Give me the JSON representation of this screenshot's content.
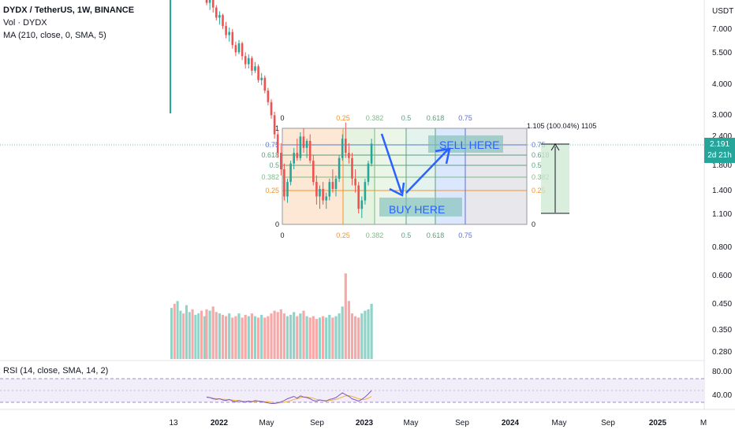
{
  "header": {
    "symbol": "DYDX / TetherUS, 1W, BINANCE",
    "volume_label": "Vol · DYDX",
    "ma_label": "MA (210, close, 0, SMA, 5)",
    "rsi_label": "RSI (14, close, SMA, 14, 2)"
  },
  "price_axis": {
    "currency": "USDT",
    "ticks": [
      "7.000",
      "5.500",
      "4.000",
      "3.000",
      "2.400",
      "1.800",
      "1.400",
      "1.100",
      "0.800",
      "0.600",
      "0.450",
      "0.350",
      "0.280"
    ]
  },
  "current_price": {
    "value": "2.191",
    "countdown": "2d 21h",
    "color": "#26a69a"
  },
  "rsi_axis": {
    "ticks": [
      "80.00",
      "40.00"
    ]
  },
  "time_axis": {
    "ticks": [
      "13",
      "2022",
      "May",
      "Sep",
      "2023",
      "May",
      "Sep",
      "2024",
      "May",
      "Sep",
      "2025",
      "M"
    ]
  },
  "annotations": {
    "sell": "SELL HERE",
    "buy": "BUY HERE"
  },
  "fib": {
    "top_labels": [
      "0",
      "0.25",
      "0.382",
      "0.5",
      "0.618",
      "0.75"
    ],
    "left_labels": [
      "1",
      "0.75",
      "0.618",
      "0.5",
      "0.382",
      "0.25",
      "0"
    ],
    "right_labels": [
      "0.75",
      "0.618",
      "0.5",
      "0.382",
      "0.25",
      "0"
    ],
    "measure_label": "1.105 (100.04%) 1105"
  },
  "chart_data": {
    "type": "candlestick",
    "title": "DYDX / TetherUS, 1W, BINANCE",
    "y_scale": "log",
    "ylim": [
      0.25,
      9.0
    ],
    "current_price": 2.191,
    "candles": [
      {
        "o": 9.5,
        "h": 9.8,
        "l": 8.6,
        "c": 8.8
      },
      {
        "o": 8.8,
        "h": 9.4,
        "l": 8.2,
        "c": 9.1
      },
      {
        "o": 9.1,
        "h": 9.3,
        "l": 8.0,
        "c": 8.4
      },
      {
        "o": 8.4,
        "h": 8.6,
        "l": 7.4,
        "c": 7.6
      },
      {
        "o": 7.6,
        "h": 8.1,
        "l": 7.1,
        "c": 7.8
      },
      {
        "o": 7.8,
        "h": 7.9,
        "l": 6.8,
        "c": 7.0
      },
      {
        "o": 7.0,
        "h": 7.3,
        "l": 6.2,
        "c": 6.4
      },
      {
        "o": 6.4,
        "h": 6.9,
        "l": 6.0,
        "c": 6.6
      },
      {
        "o": 6.6,
        "h": 6.8,
        "l": 5.6,
        "c": 5.8
      },
      {
        "o": 5.8,
        "h": 6.0,
        "l": 5.2,
        "c": 5.4
      },
      {
        "o": 5.4,
        "h": 6.1,
        "l": 5.3,
        "c": 5.9
      },
      {
        "o": 5.9,
        "h": 6.0,
        "l": 5.0,
        "c": 5.2
      },
      {
        "o": 5.2,
        "h": 5.4,
        "l": 4.6,
        "c": 4.8
      },
      {
        "o": 4.8,
        "h": 5.3,
        "l": 4.6,
        "c": 5.1
      },
      {
        "o": 5.1,
        "h": 5.2,
        "l": 4.3,
        "c": 4.5
      },
      {
        "o": 4.5,
        "h": 4.9,
        "l": 4.4,
        "c": 4.7
      },
      {
        "o": 4.7,
        "h": 4.8,
        "l": 4.0,
        "c": 4.1
      },
      {
        "o": 4.1,
        "h": 4.4,
        "l": 3.9,
        "c": 4.2
      },
      {
        "o": 4.2,
        "h": 4.3,
        "l": 3.6,
        "c": 3.7
      },
      {
        "o": 3.7,
        "h": 3.8,
        "l": 3.2,
        "c": 3.3
      },
      {
        "o": 3.3,
        "h": 3.4,
        "l": 2.8,
        "c": 2.9
      },
      {
        "o": 2.9,
        "h": 3.0,
        "l": 2.3,
        "c": 2.4
      },
      {
        "o": 2.4,
        "h": 2.5,
        "l": 1.9,
        "c": 2.0
      },
      {
        "o": 2.0,
        "h": 2.2,
        "l": 1.6,
        "c": 1.7
      },
      {
        "o": 1.7,
        "h": 1.8,
        "l": 1.25,
        "c": 1.3
      },
      {
        "o": 1.3,
        "h": 1.55,
        "l": 1.22,
        "c": 1.5
      },
      {
        "o": 1.5,
        "h": 1.85,
        "l": 1.45,
        "c": 1.8
      },
      {
        "o": 1.8,
        "h": 2.1,
        "l": 1.7,
        "c": 2.0
      },
      {
        "o": 2.0,
        "h": 2.3,
        "l": 1.85,
        "c": 1.9
      },
      {
        "o": 1.9,
        "h": 2.45,
        "l": 1.85,
        "c": 2.35
      },
      {
        "o": 2.35,
        "h": 2.55,
        "l": 2.0,
        "c": 2.1
      },
      {
        "o": 2.1,
        "h": 2.3,
        "l": 1.9,
        "c": 2.25
      },
      {
        "o": 2.25,
        "h": 2.4,
        "l": 1.8,
        "c": 1.85
      },
      {
        "o": 1.85,
        "h": 1.95,
        "l": 1.45,
        "c": 1.5
      },
      {
        "o": 1.5,
        "h": 1.6,
        "l": 1.2,
        "c": 1.3
      },
      {
        "o": 1.3,
        "h": 1.45,
        "l": 1.15,
        "c": 1.4
      },
      {
        "o": 1.4,
        "h": 1.5,
        "l": 1.2,
        "c": 1.25
      },
      {
        "o": 1.25,
        "h": 1.35,
        "l": 1.15,
        "c": 1.3
      },
      {
        "o": 1.3,
        "h": 1.55,
        "l": 1.25,
        "c": 1.5
      },
      {
        "o": 1.5,
        "h": 1.7,
        "l": 1.35,
        "c": 1.4
      },
      {
        "o": 1.4,
        "h": 1.6,
        "l": 1.3,
        "c": 1.55
      },
      {
        "o": 1.55,
        "h": 1.95,
        "l": 1.5,
        "c": 1.9
      },
      {
        "o": 1.9,
        "h": 2.4,
        "l": 1.85,
        "c": 2.3
      },
      {
        "o": 2.3,
        "h": 2.7,
        "l": 1.9,
        "c": 2.0
      },
      {
        "o": 2.0,
        "h": 2.2,
        "l": 1.8,
        "c": 1.9
      },
      {
        "o": 1.9,
        "h": 2.0,
        "l": 1.45,
        "c": 1.55
      },
      {
        "o": 1.55,
        "h": 1.7,
        "l": 1.35,
        "c": 1.45
      },
      {
        "o": 1.45,
        "h": 1.5,
        "l": 1.1,
        "c": 1.15
      },
      {
        "o": 1.15,
        "h": 1.3,
        "l": 1.05,
        "c": 1.25
      },
      {
        "o": 1.25,
        "h": 1.55,
        "l": 1.2,
        "c": 1.5
      },
      {
        "o": 1.5,
        "h": 1.85,
        "l": 1.45,
        "c": 1.8
      },
      {
        "o": 1.8,
        "h": 2.3,
        "l": 1.75,
        "c": 2.19
      }
    ],
    "volume": [
      0.36,
      0.35,
      0.38,
      0.34,
      0.33,
      0.32,
      0.31,
      0.33,
      0.3,
      0.31,
      0.33,
      0.3,
      0.32,
      0.31,
      0.33,
      0.31,
      0.3,
      0.32,
      0.3,
      0.31,
      0.33,
      0.35,
      0.34,
      0.36,
      0.33,
      0.31,
      0.32,
      0.34,
      0.31,
      0.33,
      0.35,
      0.31,
      0.3,
      0.31,
      0.29,
      0.3,
      0.31,
      0.3,
      0.32,
      0.3,
      0.31,
      0.33,
      0.38,
      0.62,
      0.42,
      0.33,
      0.31,
      0.3,
      0.33,
      0.35,
      0.36,
      0.4
    ],
    "rsi": [
      41,
      40,
      38,
      37,
      38,
      36,
      35,
      37,
      34,
      33,
      35,
      33,
      32,
      34,
      33,
      35,
      34,
      33,
      32,
      31,
      30,
      30,
      31,
      33,
      35,
      38,
      40,
      42,
      39,
      43,
      41,
      40,
      38,
      35,
      34,
      36,
      35,
      34,
      37,
      38,
      40,
      44,
      48,
      45,
      42,
      38,
      36,
      34,
      37,
      41,
      46,
      52
    ],
    "rsi_ma": [
      40,
      40,
      39,
      38,
      38,
      37,
      37,
      36,
      36,
      35,
      35,
      34,
      34,
      34,
      33,
      33,
      34,
      34,
      33,
      33,
      32,
      31,
      31,
      31,
      32,
      33,
      35,
      37,
      38,
      40,
      41,
      41,
      40,
      39,
      37,
      36,
      35,
      35,
      35,
      36,
      37,
      39,
      41,
      43,
      43,
      42,
      40,
      38,
      37,
      37,
      39,
      42
    ],
    "rsi_bands": [
      70,
      30
    ],
    "fib_levels": [
      0,
      0.25,
      0.382,
      0.5,
      0.618,
      0.75,
      1
    ],
    "fib_range": {
      "low": 1.1,
      "high": 2.61
    },
    "colors": {
      "up": "#26a69a",
      "down": "#ef5350",
      "rsi": "#7e57c2",
      "rsi_ma": "#f0b232",
      "arrow": "#2962ff"
    }
  }
}
